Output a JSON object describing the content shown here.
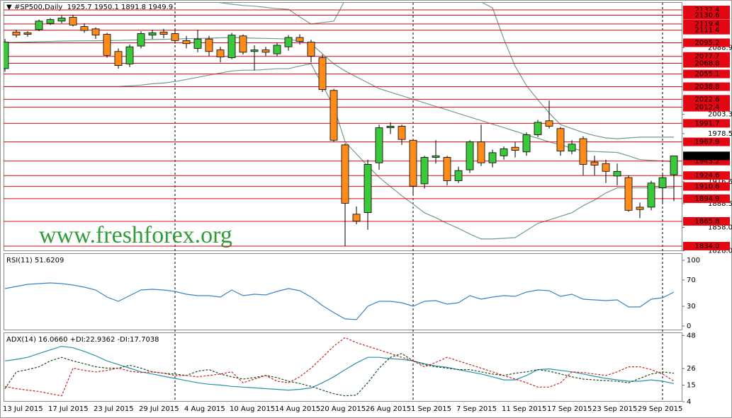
{
  "chart_data": [
    {
      "type": "candlestick",
      "header": "#SP500,Daily  1925.7 1950.1 1891.8 1949.9",
      "watermark": "www.freshforex.org",
      "categories": [
        "13 Jul 2015",
        null,
        null,
        null,
        "17 Jul 2015",
        null,
        null,
        null,
        "23 Jul 2015",
        null,
        null,
        null,
        "29 Jul 2015",
        null,
        null,
        null,
        "4 Aug 2015",
        null,
        null,
        null,
        "10 Aug 2015",
        null,
        null,
        null,
        "14 Aug 2015",
        null,
        null,
        null,
        "20 Aug 2015",
        null,
        null,
        null,
        "26 Aug 2015",
        null,
        null,
        null,
        "1 Sep 2015",
        null,
        null,
        null,
        "7 Sep 2015",
        null,
        null,
        null,
        "11 Sep 2015",
        null,
        null,
        null,
        "17 Sep 2015",
        null,
        null,
        null,
        "23 Sep 2015",
        null,
        null,
        null,
        "29 Sep 2015",
        null,
        null,
        null
      ],
      "open": [
        2062,
        2109,
        2108,
        2112,
        2120,
        2123,
        2128,
        2116,
        2113,
        2106,
        2084,
        2068,
        2091,
        2105,
        2109,
        2107,
        2098,
        2088,
        2100,
        2086,
        2076,
        2104,
        2084,
        2086,
        2081,
        2090,
        2102,
        2096,
        2076,
        2034,
        1964,
        1875,
        1877,
        1941,
        1986,
        1988,
        1970,
        1914,
        1948,
        1948,
        1918,
        1932,
        1968,
        1941,
        1950,
        1961,
        1955,
        1977,
        1995,
        1985,
        1956,
        1972,
        1942,
        1940,
        1924,
        1922,
        1884,
        1884,
        1909,
        1925.7
      ],
      "high": [
        2100,
        2112,
        2110,
        2125,
        2127,
        2130,
        2131,
        2120,
        2115,
        2108,
        2088,
        2093,
        2110,
        2112,
        2113,
        2112,
        2104,
        2112,
        2104,
        2090,
        2108,
        2106,
        2092,
        2090,
        2095,
        2105,
        2106,
        2099,
        2080,
        2036,
        1966,
        1885,
        1945,
        1990,
        1993,
        1990,
        1972,
        1950,
        1970,
        1950,
        1936,
        1970,
        1990,
        1958,
        1962,
        1968,
        1980,
        1996,
        2021,
        1987,
        1970,
        1975,
        1950,
        1945,
        1940,
        1925,
        1890,
        1918,
        1926,
        1950.1
      ],
      "low": [
        2058,
        2102,
        2103,
        2110,
        2118,
        2120,
        2116,
        2108,
        2100,
        2076,
        2062,
        2064,
        2088,
        2100,
        2101,
        2094,
        2088,
        2083,
        2078,
        2070,
        2074,
        2080,
        2060,
        2078,
        2078,
        2085,
        2093,
        2070,
        2032,
        1968,
        1834,
        1862,
        1855,
        1932,
        1978,
        1964,
        1900,
        1908,
        1940,
        1912,
        1915,
        1928,
        1937,
        1935,
        1945,
        1948,
        1950,
        1974,
        1985,
        1950,
        1952,
        1925,
        1925,
        1915,
        1912,
        1878,
        1870,
        1880,
        1890,
        1891.8
      ],
      "close": [
        2096,
        2105,
        2106,
        2123,
        2125,
        2127,
        2118,
        2111,
        2105,
        2079,
        2066,
        2090,
        2107,
        2108,
        2106,
        2098,
        2094,
        2100,
        2084,
        2077,
        2105,
        2083,
        2086,
        2083,
        2092,
        2102,
        2097,
        2078,
        2035,
        1970,
        1889,
        1866,
        1939,
        1986,
        1988,
        1971,
        1911,
        1948,
        1950,
        1918,
        1931,
        1968,
        1941,
        1954,
        1959,
        1957,
        1977,
        1993,
        1988,
        1956,
        1965,
        1939,
        1938,
        1930,
        1930,
        1880,
        1881,
        1915,
        1922,
        1949.9
      ],
      "up_color": "#3cc83c",
      "down_color": "#ff8c1a",
      "series": [
        {
          "color": "#6f9c8c",
          "values": [
            2152.0,
            2152.8,
            2153.4,
            2154.2,
            2154.8,
            2155.6,
            2156.0,
            2156.4,
            2156.6,
            2157.0,
            2157.4,
            2157.3,
            2157.0,
            2156.0,
            2155.7,
            2154.6,
            2152.7,
            2150.8,
            2148.6,
            2146.7,
            2144.8,
            2143.0,
            2142.2,
            2140.7,
            2139.0,
            2138.2,
            2128.4,
            2119.2,
            2121.2,
            2122.9,
            2150.1,
            2150.4,
            2150.9,
            2150.2,
            2152.9,
            2155.7,
            2157.4,
            2159.2,
            2156.5,
            2154.8,
            2152.0,
            2150.3,
            2147.5,
            2140,
            2100,
            2065,
            2040,
            2022,
            2005,
            1990,
            1985,
            1980,
            1976,
            1973,
            1972,
            1973,
            1974,
            1974,
            1974,
            1974
          ]
        },
        {
          "color": "#6f9c8c",
          "values": [
            2095.5,
            2095.9,
            2096.2,
            2096.6,
            2096.9,
            2097.3,
            2097.5,
            2097.7,
            2097.8,
            2098.0,
            2098.2,
            2098.6,
            2098.9,
            2099.3,
            2099.6,
            2100.0,
            2100.4,
            2100.8,
            2101.1,
            2101.5,
            2101.9,
            2101.5,
            2101.1,
            2100.8,
            2100.4,
            2100.0,
            2096.9,
            2093.7,
            2081.0,
            2068.2,
            2059.0,
            2051.4,
            2043.9,
            2036.3,
            2031.7,
            2027.2,
            2022.6,
            2018.0,
            2013.5,
            2009.0,
            2004.4,
            1999.9,
            1995.3,
            1990.7,
            1986.2,
            1981.6,
            1977.0,
            1972.5,
            1967.9,
            1964.0,
            1960.0,
            1956.1,
            1955.5,
            1954.9,
            1954.3,
            1950.0,
            1945.1,
            1944.2,
            1943.3,
            1942.4
          ]
        },
        {
          "color": "#6f9c8c",
          "values": [
            2039.0,
            2039.0,
            2039.0,
            2039.0,
            2039.0,
            2039.0,
            2039.0,
            2039.0,
            2039.0,
            2039.0,
            2039.0,
            2039.9,
            2040.8,
            2042.6,
            2043.5,
            2045.4,
            2048.1,
            2050.8,
            2053.6,
            2056.3,
            2059.0,
            2060.0,
            2060.0,
            2060.9,
            2061.8,
            2061.8,
            2065.4,
            2068.2,
            2040.8,
            2013.5,
            1967.9,
            1952.4,
            1936.9,
            1922.4,
            1910.5,
            1898.7,
            1887.8,
            1876.8,
            1870.5,
            1863.2,
            1856.8,
            1849.5,
            1843.1,
            1843.1,
            1844.0,
            1844.9,
            1854.0,
            1863.2,
            1867.7,
            1872.3,
            1876.8,
            1885.9,
            1893.2,
            1902.3,
            1908.7,
            1908.7,
            1908.7,
            1908.7,
            1908.7,
            1908.7
          ]
        }
      ],
      "levels": [
        2137.4,
        2130.6,
        2119.4,
        2111.4,
        2095.2,
        2077.7,
        2068.8,
        2055.1,
        2038.8,
        2022.6,
        2012.4,
        1991.7,
        1967.9,
        1943.2,
        1924.6,
        1910.6,
        1894.9,
        1865.8,
        {
          "value": 1834,
          "label": "1834.0"
        }
      ],
      "level_color": "#e30613",
      "ylim": [
        1827.6,
        2147.4
      ],
      "yticks": [
        {
          "value": 1828,
          "label": "1828.0"
        },
        {
          "value": 1858,
          "label": "1858.0"
        },
        1888.5,
        1916.6,
        1978.5,
        2003.3,
        2088.9
      ]
    },
    {
      "type": "line",
      "title": "RSI(11) 51.6209",
      "series": [
        {
          "color": "#3b82c4",
          "values": [
            57.0,
            60.2,
            63.4,
            64.5,
            65.6,
            64.5,
            62.4,
            59.1,
            54.8,
            44.1,
            37.6,
            46.2,
            54.8,
            55.9,
            54.8,
            52.7,
            48.4,
            46.2,
            46.2,
            44.1,
            54.8,
            46.2,
            48.4,
            47.3,
            52.7,
            57.0,
            53.8,
            44.1,
            31.2,
            20.4,
            10.8,
            9.7,
            30.1,
            37.6,
            37.6,
            35.5,
            30.1,
            37.6,
            38.7,
            33.3,
            35.5,
            46.2,
            40.9,
            44.1,
            46.2,
            45.2,
            51.6,
            54.8,
            53.8,
            45.2,
            48.4,
            40.9,
            39.8,
            38.7,
            39.8,
            29.0,
            29.0,
            40.9,
            43.0,
            51.6209
          ]
        }
      ],
      "ylim": [
        -6.5,
        110.8
      ],
      "yticks": [
        0,
        30,
        70,
        100
      ]
    },
    {
      "type": "line",
      "title": "ADX(14) 16.0660 +DI:22.9362 -DI:17.7038",
      "series": [
        {
          "color": "#2a93a8",
          "dash": false,
          "values": [
            31.1,
            32.1,
            33.5,
            36.0,
            38.4,
            40.8,
            39.8,
            37.4,
            34.5,
            31.1,
            28.7,
            26.3,
            23.8,
            22.4,
            20.9,
            19.5,
            18.0,
            16.6,
            15.6,
            15.1,
            14.2,
            13.7,
            13.2,
            12.7,
            12.2,
            11.7,
            12.2,
            13.2,
            16.6,
            20.5,
            25.3,
            29.7,
            33.5,
            33.5,
            32.6,
            32.1,
            31.1,
            29.2,
            27.7,
            26.8,
            25.3,
            23.8,
            22.4,
            20.5,
            18.5,
            18.5,
            21.4,
            25.3,
            25.8,
            24.8,
            23.8,
            22.4,
            20.9,
            19.5,
            18.5,
            17.6,
            17.6,
            18.5,
            17.6,
            16.066
          ]
        },
        {
          "color": "#1e4d1e",
          "dash": true,
          "values": [
            12.7,
            23.8,
            25.3,
            27.2,
            31.1,
            33.5,
            31.1,
            29.2,
            27.2,
            26.3,
            26.3,
            28.2,
            26.3,
            23.8,
            22.9,
            22.4,
            21.4,
            24.3,
            25.3,
            22.4,
            20.5,
            19.0,
            20.0,
            21.4,
            20.0,
            17.6,
            16.1,
            14.2,
            11.7,
            9.3,
            7.9,
            8.4,
            16.6,
            26.3,
            33.5,
            36.0,
            31.1,
            28.7,
            27.2,
            26.3,
            25.3,
            25.3,
            23.8,
            22.4,
            21.4,
            22.9,
            23.8,
            25.3,
            24.3,
            22.4,
            20.5,
            19.0,
            18.5,
            18.0,
            17.6,
            16.6,
            19.5,
            22.4,
            23.8,
            22.9362
          ]
        },
        {
          "color": "#c62828",
          "dash": true,
          "values": [
            14.2,
            12.7,
            11.7,
            10.8,
            9.3,
            7.9,
            26.3,
            24.8,
            23.8,
            24.8,
            26.3,
            24.3,
            23.4,
            23.8,
            22.9,
            21.4,
            21.4,
            20.5,
            21.4,
            22.4,
            23.8,
            16.6,
            19.0,
            21.4,
            17.6,
            16.6,
            20.5,
            26.3,
            33.5,
            40.8,
            46.6,
            43.2,
            40.8,
            38.4,
            36.0,
            33.5,
            31.1,
            27.2,
            30.1,
            33.5,
            31.1,
            28.7,
            26.3,
            23.8,
            21.4,
            19.0,
            16.6,
            13.7,
            13.7,
            16.6,
            23.8,
            23.4,
            22.4,
            21.4,
            23.8,
            27.2,
            27.2,
            25.3,
            22.4,
            17.7038
          ]
        }
      ],
      "ylim": [
        4,
        50
      ],
      "yticks": [
        4,
        15,
        26,
        48
      ]
    }
  ]
}
